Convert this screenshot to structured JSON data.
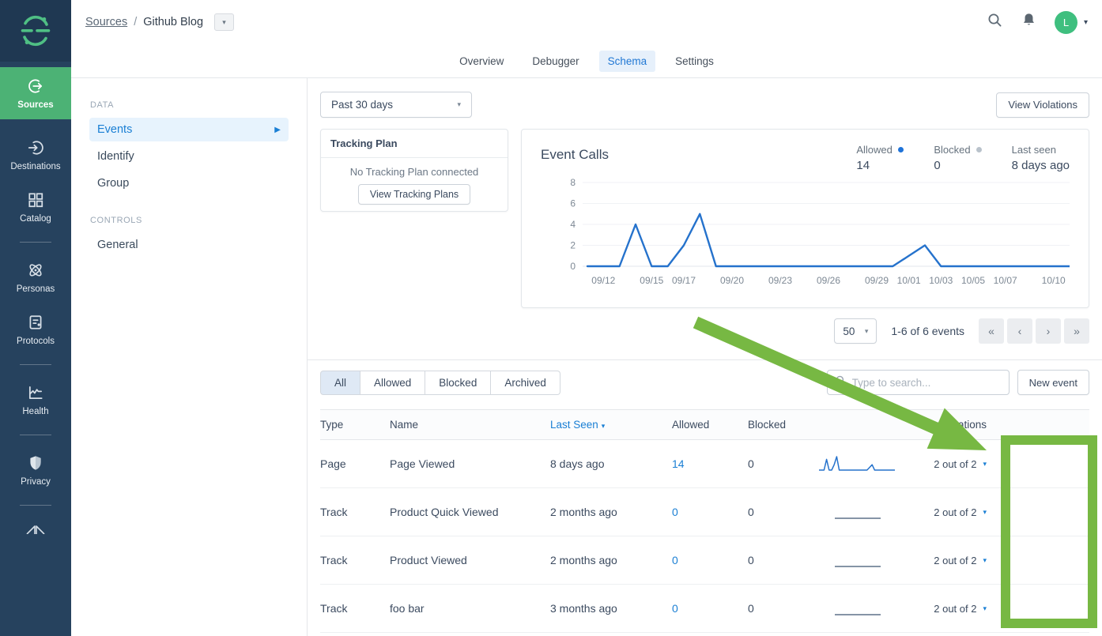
{
  "colors": {
    "brand_green": "#4cb275",
    "avatar_green": "#3fbf7f",
    "annotation_green": "#77b843",
    "link_blue": "#1a7fd4",
    "toggle_blue": "#4292d7",
    "chart_line_blue": "#2572cc",
    "sidebar_navy": "#26425e"
  },
  "sidebar": {
    "items": [
      {
        "label": "Sources",
        "icon": "sources-icon",
        "active": true
      },
      {
        "label": "Destinations",
        "icon": "destinations-icon",
        "active": false
      },
      {
        "label": "Catalog",
        "icon": "catalog-icon",
        "active": false
      },
      {
        "label": "Personas",
        "icon": "personas-icon",
        "active": false
      },
      {
        "label": "Protocols",
        "icon": "protocols-icon",
        "active": false
      },
      {
        "label": "Health",
        "icon": "health-icon",
        "active": false
      },
      {
        "label": "Privacy",
        "icon": "privacy-icon",
        "active": false
      }
    ]
  },
  "header": {
    "breadcrumb_root": "Sources",
    "breadcrumb_sep": "/",
    "breadcrumb_current": "Github Blog",
    "avatar_initial": "L"
  },
  "tabs": [
    {
      "label": "Overview",
      "active": false
    },
    {
      "label": "Debugger",
      "active": false
    },
    {
      "label": "Schema",
      "active": true
    },
    {
      "label": "Settings",
      "active": false
    }
  ],
  "nav_panel": {
    "sections": [
      {
        "heading": "DATA",
        "items": [
          {
            "label": "Events",
            "active": true
          },
          {
            "label": "Identify",
            "active": false
          },
          {
            "label": "Group",
            "active": false
          }
        ]
      },
      {
        "heading": "CONTROLS",
        "items": [
          {
            "label": "General",
            "active": false
          }
        ]
      }
    ]
  },
  "toolbar": {
    "range_label": "Past 30 days",
    "view_violations_label": "View Violations"
  },
  "tracking_plan": {
    "title": "Tracking Plan",
    "empty_text": "No Tracking Plan connected",
    "button_label": "View Tracking Plans"
  },
  "chart_data": {
    "type": "line",
    "title": "Event Calls",
    "x": [
      "09/11",
      "09/12",
      "09/13",
      "09/14",
      "09/15",
      "09/16",
      "09/17",
      "09/18",
      "09/19",
      "09/20",
      "09/21",
      "09/22",
      "09/23",
      "09/24",
      "09/25",
      "09/26",
      "09/27",
      "09/28",
      "09/29",
      "09/30",
      "10/01",
      "10/02",
      "10/03",
      "10/04",
      "10/05",
      "10/06",
      "10/07",
      "10/08",
      "10/09",
      "10/10",
      "10/11"
    ],
    "values": [
      0,
      0,
      0,
      4,
      0,
      0,
      2,
      5,
      0,
      0,
      0,
      0,
      0,
      0,
      0,
      0,
      0,
      0,
      0,
      0,
      1,
      2,
      0,
      0,
      0,
      0,
      0,
      0,
      0,
      0,
      0
    ],
    "ylim": [
      0,
      8
    ],
    "yticks": [
      0,
      2,
      4,
      6,
      8
    ],
    "xtick_indices": [
      1,
      4,
      6,
      9,
      12,
      15,
      18,
      20,
      22,
      24,
      26,
      29
    ],
    "xtick_labels": [
      "09/12",
      "09/15",
      "09/17",
      "09/20",
      "09/23",
      "09/26",
      "09/29",
      "10/01",
      "10/03",
      "10/05",
      "10/07",
      "10/10"
    ],
    "grid": true,
    "legend_position": "top-right",
    "stats": [
      {
        "label": "Allowed",
        "value": "14",
        "dot": "#1f73d8"
      },
      {
        "label": "Blocked",
        "value": "0",
        "dot": "#b9c2cb"
      },
      {
        "label": "Last seen",
        "value": "8 days ago",
        "dot": ""
      }
    ]
  },
  "pagination": {
    "page_size": "50",
    "summary": "1-6 of 6 events",
    "controls": [
      "«",
      "‹",
      "›",
      "»"
    ]
  },
  "filters": {
    "segments": [
      "All",
      "Allowed",
      "Blocked",
      "Archived"
    ],
    "active_segment": "All",
    "search_placeholder": "Type to search...",
    "new_event_label": "New event"
  },
  "table": {
    "columns": {
      "type": "Type",
      "name": "Name",
      "last_seen": "Last Seen",
      "allowed": "Allowed",
      "blocked": "Blocked",
      "integrations": "Integrations"
    },
    "sort_column": "Last Seen",
    "sort_caret": "▾",
    "rows": [
      {
        "type": "Page",
        "name": "Page Viewed",
        "last_seen": "8 days ago",
        "allowed": "14",
        "blocked": "0",
        "sparkline": "series",
        "integrations": "2 out of 2",
        "enabled": true
      },
      {
        "type": "Track",
        "name": "Product Quick Viewed",
        "last_seen": "2 months ago",
        "allowed": "0",
        "blocked": "0",
        "sparkline": "flat",
        "integrations": "2 out of 2",
        "enabled": true
      },
      {
        "type": "Track",
        "name": "Product Viewed",
        "last_seen": "2 months ago",
        "allowed": "0",
        "blocked": "0",
        "sparkline": "flat",
        "integrations": "2 out of 2",
        "enabled": true
      },
      {
        "type": "Track",
        "name": "foo bar",
        "last_seen": "3 months ago",
        "allowed": "0",
        "blocked": "0",
        "sparkline": "flat",
        "integrations": "2 out of 2",
        "enabled": true
      }
    ]
  },
  "annotation": {
    "shape": "arrow-and-box",
    "color": "#77b843"
  }
}
